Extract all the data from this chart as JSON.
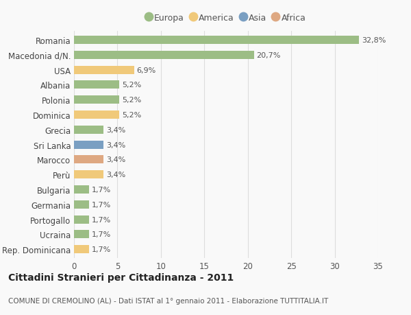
{
  "categories": [
    "Rep. Dominicana",
    "Ucraina",
    "Portogallo",
    "Germania",
    "Bulgaria",
    "Perù",
    "Marocco",
    "Sri Lanka",
    "Grecia",
    "Dominica",
    "Polonia",
    "Albania",
    "USA",
    "Macedonia d/N.",
    "Romania"
  ],
  "values": [
    1.7,
    1.7,
    1.7,
    1.7,
    1.7,
    3.4,
    3.4,
    3.4,
    3.4,
    5.2,
    5.2,
    5.2,
    6.9,
    20.7,
    32.8
  ],
  "labels": [
    "1,7%",
    "1,7%",
    "1,7%",
    "1,7%",
    "1,7%",
    "3,4%",
    "3,4%",
    "3,4%",
    "3,4%",
    "5,2%",
    "5,2%",
    "5,2%",
    "6,9%",
    "20,7%",
    "32,8%"
  ],
  "colors": [
    "#f0c97a",
    "#9cbd85",
    "#9cbd85",
    "#9cbd85",
    "#9cbd85",
    "#f0c97a",
    "#dea882",
    "#7a9fc2",
    "#9cbd85",
    "#f0c97a",
    "#9cbd85",
    "#9cbd85",
    "#f0c97a",
    "#9cbd85",
    "#9cbd85"
  ],
  "legend_labels": [
    "Europa",
    "America",
    "Asia",
    "Africa"
  ],
  "legend_colors": [
    "#9cbd85",
    "#f0c97a",
    "#7a9fc2",
    "#dea882"
  ],
  "xlim": [
    0,
    35
  ],
  "xticks": [
    0,
    5,
    10,
    15,
    20,
    25,
    30,
    35
  ],
  "title_main": "Cittadini Stranieri per Cittadinanza - 2011",
  "title_sub": "COMUNE DI CREMOLINO (AL) - Dati ISTAT al 1° gennaio 2011 - Elaborazione TUTTITALIA.IT",
  "background_color": "#f9f9f9",
  "grid_color": "#dddddd",
  "bar_height": 0.55,
  "label_fontsize": 8,
  "ytick_fontsize": 8.5,
  "xtick_fontsize": 8.5,
  "title_fontsize": 10,
  "subtitle_fontsize": 7.5,
  "legend_fontsize": 9
}
